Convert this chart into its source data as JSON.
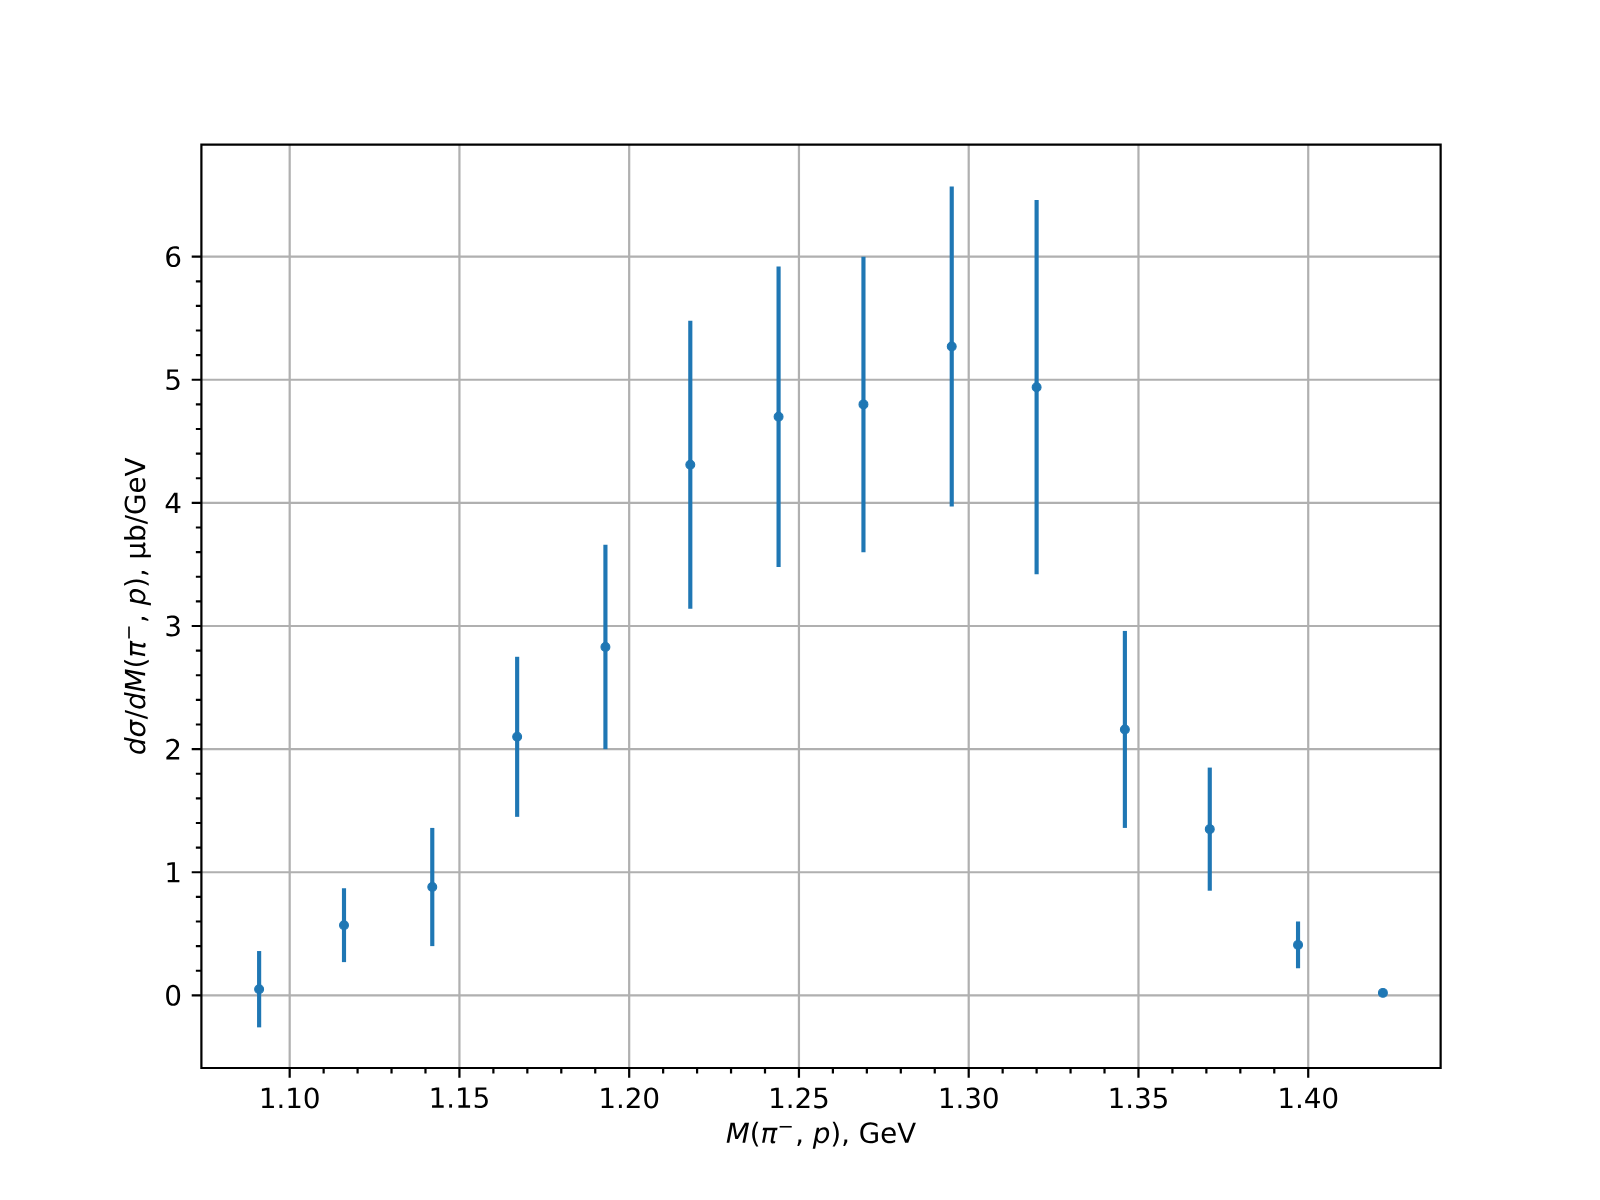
{
  "chart_data": {
    "type": "scatter",
    "xlabel": "*M*(*π*$^{−}$, *p*), GeV",
    "ylabel": "*dσ*/*dM*(*π*$^{−}$, *p*), μb/GeV",
    "x": [
      1.091,
      1.116,
      1.142,
      1.167,
      1.193,
      1.218,
      1.244,
      1.269,
      1.295,
      1.32,
      1.346,
      1.371,
      1.397,
      1.422
    ],
    "values": [
      0.05,
      0.57,
      0.88,
      2.1,
      2.83,
      4.31,
      4.7,
      4.8,
      5.27,
      4.94,
      2.16,
      1.35,
      0.41,
      0.02
    ],
    "errors": [
      0.31,
      0.3,
      0.48,
      0.65,
      0.83,
      1.17,
      1.22,
      1.2,
      1.3,
      1.52,
      0.8,
      0.5,
      0.19,
      null
    ],
    "color": "#1f77b4",
    "marker": "circle",
    "xlim": [
      1.074,
      1.439
    ],
    "ylim": [
      -0.59,
      6.91
    ],
    "xticks": [
      {
        "value": 1.1,
        "label": "1.10"
      },
      {
        "value": 1.15,
        "label": "1.15"
      },
      {
        "value": 1.2,
        "label": "1.20"
      },
      {
        "value": 1.25,
        "label": "1.25"
      },
      {
        "value": 1.3,
        "label": "1.30"
      },
      {
        "value": 1.35,
        "label": "1.35"
      },
      {
        "value": 1.4,
        "label": "1.40"
      }
    ],
    "yticks": [
      0,
      1,
      2,
      3,
      4,
      5,
      6
    ],
    "grid": true
  }
}
